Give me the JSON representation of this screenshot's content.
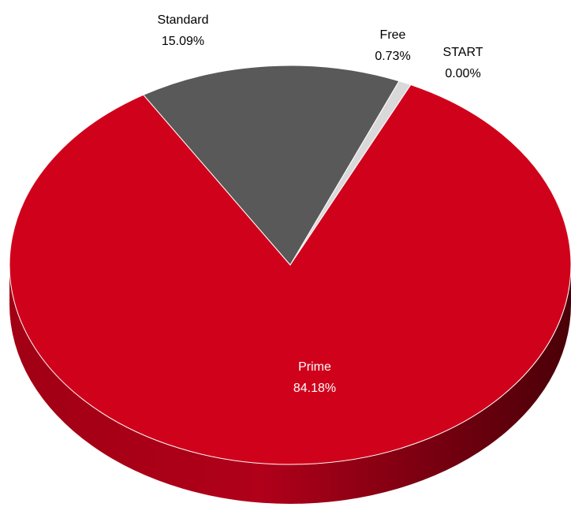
{
  "chart_data": {
    "type": "pie",
    "style": "3d",
    "start_angle_note": "slices ordered clockwise from top",
    "slices": [
      {
        "name": "Free",
        "value": 0.73,
        "label": "0.73%",
        "color": "#d9d9d9",
        "label_color": "#000000"
      },
      {
        "name": "START",
        "value": 0.0,
        "label": "0.00%",
        "color": "#bfbfbf",
        "label_color": "#000000"
      },
      {
        "name": "Prime",
        "value": 84.18,
        "label": "84.18%",
        "color": "#d0021b",
        "label_color": "#ffffff"
      },
      {
        "name": "Standard",
        "value": 15.09,
        "label": "15.09%",
        "color": "#595959",
        "label_color": "#000000"
      }
    ]
  }
}
